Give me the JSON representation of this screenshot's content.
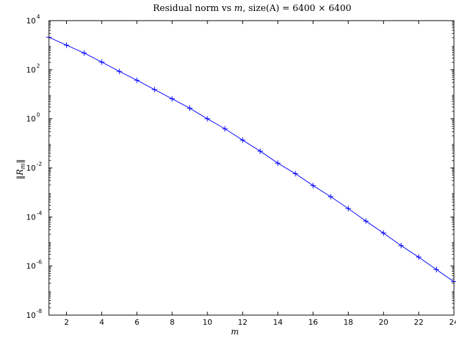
{
  "chart_data": {
    "type": "line",
    "title": "Residual norm vs m, size(A) = 6400 × 6400",
    "title_parts": {
      "prefix": "Residual norm vs ",
      "variable": "m",
      "suffix": ", size(A) = 6400 × 6400"
    },
    "xlabel": "m",
    "ylabel": "||R_m||",
    "ylabel_parts": {
      "left_bars": "‖",
      "symbol": "R",
      "subscript": "m",
      "right_bars": "‖"
    },
    "xlim": [
      1,
      24
    ],
    "ylim": [
      1e-08,
      10000.0
    ],
    "yscale": "log",
    "grid": false,
    "legend": "none",
    "xticks": [
      2,
      4,
      6,
      8,
      10,
      12,
      14,
      16,
      18,
      20,
      22,
      24
    ],
    "xtick_labels": [
      "2",
      "4",
      "6",
      "8",
      "10",
      "12",
      "14",
      "16",
      "18",
      "20",
      "22",
      "24"
    ],
    "yticks": [
      10000.0,
      100.0,
      1.0,
      0.01,
      0.0001,
      1e-06,
      1e-08
    ],
    "ytick_base_labels": [
      "10",
      "10",
      "10",
      "10",
      "10",
      "10",
      "10"
    ],
    "ytick_exponent_labels": [
      "4",
      "2",
      "0",
      "-2",
      "-4",
      "-6",
      "-8"
    ],
    "series": [
      {
        "color": "#0000ff",
        "marker": "+",
        "x": [
          1,
          2,
          3,
          4,
          5,
          6,
          7,
          8,
          9,
          10,
          11,
          12,
          13,
          14,
          15,
          16,
          17,
          18,
          19,
          20,
          21,
          22,
          23,
          24
        ],
        "y": [
          2100,
          1000,
          480,
          205,
          85,
          37,
          15.5,
          6.5,
          2.7,
          1.0,
          0.39,
          0.135,
          0.048,
          0.0155,
          0.0058,
          0.0019,
          0.00067,
          0.00022,
          6.8e-05,
          2.2e-05,
          6.8e-06,
          2.3e-06,
          7.2e-07,
          2.3e-07
        ]
      }
    ]
  }
}
